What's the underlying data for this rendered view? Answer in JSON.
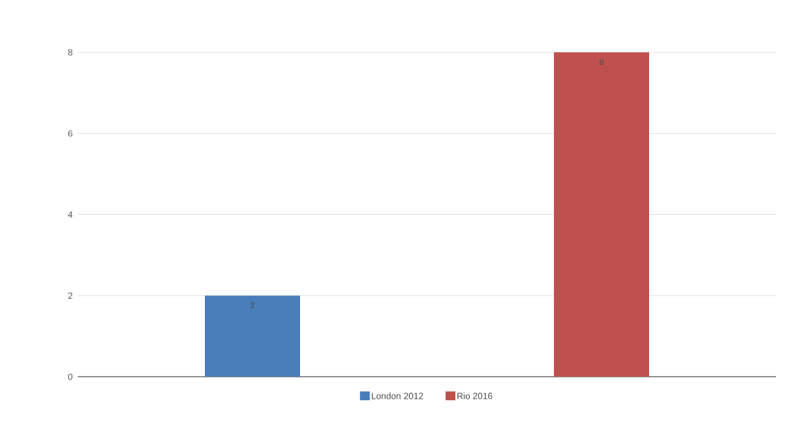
{
  "chart_data": {
    "type": "bar",
    "categories": [
      null,
      null
    ],
    "series": [
      {
        "name": "London 2012",
        "color": "#4a7ebb",
        "values": [
          2,
          null
        ]
      },
      {
        "name": "Rio 2016",
        "color": "#c0504d",
        "values": [
          null,
          8
        ]
      }
    ],
    "ylim": [
      0,
      8
    ],
    "yticks": [
      0,
      2,
      4,
      6,
      8
    ],
    "grid": "y",
    "legend": "bottom",
    "data_labels": true
  }
}
